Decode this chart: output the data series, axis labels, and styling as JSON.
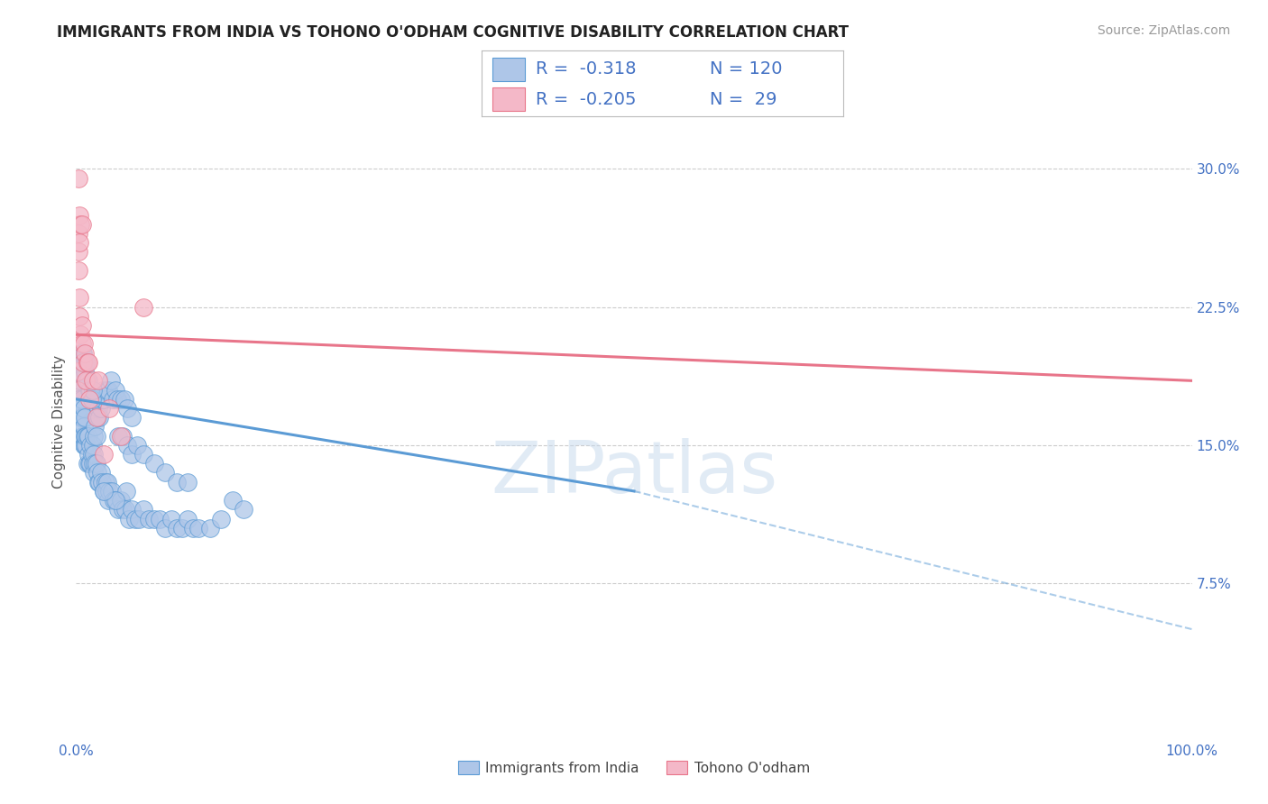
{
  "title": "IMMIGRANTS FROM INDIA VS TOHONO O'ODHAM COGNITIVE DISABILITY CORRELATION CHART",
  "source": "Source: ZipAtlas.com",
  "ylabel": "Cognitive Disability",
  "y_tick_labels": [
    "7.5%",
    "15.0%",
    "22.5%",
    "30.0%"
  ],
  "y_ticks": [
    0.075,
    0.15,
    0.225,
    0.3
  ],
  "xlim": [
    0.0,
    1.0
  ],
  "ylim": [
    -0.01,
    0.335
  ],
  "legend_entries": [
    {
      "label": "Immigrants from India",
      "R": "-0.318",
      "N": "120"
    },
    {
      "label": "Tohono O'odham",
      "R": "-0.205",
      "N": "29"
    }
  ],
  "blue_color": "#5b9bd5",
  "pink_color": "#e8758a",
  "blue_fill": "#aec6e8",
  "pink_fill": "#f4b8c8",
  "watermark": "ZIPatlas",
  "background_color": "#ffffff",
  "grid_color": "#cccccc",
  "title_color": "#222222",
  "axis_label_color": "#4472c4",
  "blue_scatter": {
    "x": [
      0.001,
      0.001,
      0.002,
      0.002,
      0.003,
      0.003,
      0.003,
      0.004,
      0.004,
      0.005,
      0.005,
      0.005,
      0.006,
      0.006,
      0.007,
      0.007,
      0.007,
      0.008,
      0.008,
      0.008,
      0.009,
      0.009,
      0.01,
      0.01,
      0.011,
      0.011,
      0.012,
      0.013,
      0.013,
      0.014,
      0.015,
      0.015,
      0.016,
      0.016,
      0.017,
      0.018,
      0.019,
      0.02,
      0.021,
      0.022,
      0.023,
      0.025,
      0.026,
      0.027,
      0.028,
      0.029,
      0.03,
      0.032,
      0.034,
      0.036,
      0.038,
      0.04,
      0.042,
      0.044,
      0.047,
      0.05,
      0.053,
      0.056,
      0.06,
      0.065,
      0.07,
      0.075,
      0.08,
      0.085,
      0.09,
      0.095,
      0.1,
      0.105,
      0.11,
      0.12,
      0.13,
      0.14,
      0.15,
      0.016,
      0.017,
      0.018,
      0.019,
      0.02,
      0.021,
      0.022,
      0.023,
      0.024,
      0.025,
      0.027,
      0.029,
      0.031,
      0.033,
      0.035,
      0.037,
      0.04,
      0.043,
      0.046,
      0.05,
      0.002,
      0.003,
      0.004,
      0.005,
      0.006,
      0.007,
      0.008,
      0.009,
      0.01,
      0.011,
      0.012,
      0.013,
      0.014,
      0.015,
      0.038,
      0.042,
      0.046,
      0.05,
      0.055,
      0.06,
      0.07,
      0.08,
      0.09,
      0.1,
      0.045,
      0.035,
      0.025
    ],
    "y": [
      0.18,
      0.175,
      0.17,
      0.19,
      0.165,
      0.175,
      0.185,
      0.16,
      0.17,
      0.155,
      0.165,
      0.175,
      0.155,
      0.165,
      0.15,
      0.16,
      0.17,
      0.15,
      0.155,
      0.165,
      0.15,
      0.155,
      0.14,
      0.155,
      0.145,
      0.155,
      0.14,
      0.14,
      0.15,
      0.145,
      0.14,
      0.15,
      0.135,
      0.145,
      0.14,
      0.14,
      0.135,
      0.13,
      0.13,
      0.135,
      0.13,
      0.125,
      0.13,
      0.125,
      0.13,
      0.12,
      0.125,
      0.125,
      0.12,
      0.12,
      0.115,
      0.12,
      0.115,
      0.115,
      0.11,
      0.115,
      0.11,
      0.11,
      0.115,
      0.11,
      0.11,
      0.11,
      0.105,
      0.11,
      0.105,
      0.105,
      0.11,
      0.105,
      0.105,
      0.105,
      0.11,
      0.12,
      0.115,
      0.155,
      0.16,
      0.155,
      0.165,
      0.17,
      0.165,
      0.17,
      0.175,
      0.18,
      0.175,
      0.18,
      0.18,
      0.185,
      0.175,
      0.18,
      0.175,
      0.175,
      0.175,
      0.17,
      0.165,
      0.195,
      0.195,
      0.2,
      0.2,
      0.2,
      0.195,
      0.19,
      0.195,
      0.185,
      0.185,
      0.18,
      0.18,
      0.175,
      0.18,
      0.155,
      0.155,
      0.15,
      0.145,
      0.15,
      0.145,
      0.14,
      0.135,
      0.13,
      0.13,
      0.125,
      0.12,
      0.125
    ]
  },
  "pink_scatter": {
    "x": [
      0.001,
      0.001,
      0.002,
      0.002,
      0.002,
      0.003,
      0.003,
      0.004,
      0.005,
      0.005,
      0.006,
      0.007,
      0.008,
      0.009,
      0.01,
      0.011,
      0.012,
      0.015,
      0.018,
      0.02,
      0.025,
      0.03,
      0.04,
      0.06,
      0.002,
      0.003,
      0.003,
      0.004,
      0.005
    ],
    "y": [
      0.18,
      0.19,
      0.245,
      0.255,
      0.265,
      0.22,
      0.23,
      0.21,
      0.205,
      0.215,
      0.195,
      0.205,
      0.2,
      0.185,
      0.195,
      0.195,
      0.175,
      0.185,
      0.165,
      0.185,
      0.145,
      0.17,
      0.155,
      0.225,
      0.295,
      0.275,
      0.26,
      0.27,
      0.27
    ]
  },
  "blue_line": {
    "x0": 0.0,
    "x1": 0.5,
    "y0": 0.175,
    "y1": 0.125,
    "dashed_x1": 1.0,
    "dashed_y1": 0.05
  },
  "pink_line": {
    "x0": 0.0,
    "x1": 1.0,
    "y0": 0.21,
    "y1": 0.185
  },
  "title_fontsize": 12,
  "source_fontsize": 10,
  "label_fontsize": 11,
  "tick_fontsize": 11,
  "legend_fontsize": 13
}
